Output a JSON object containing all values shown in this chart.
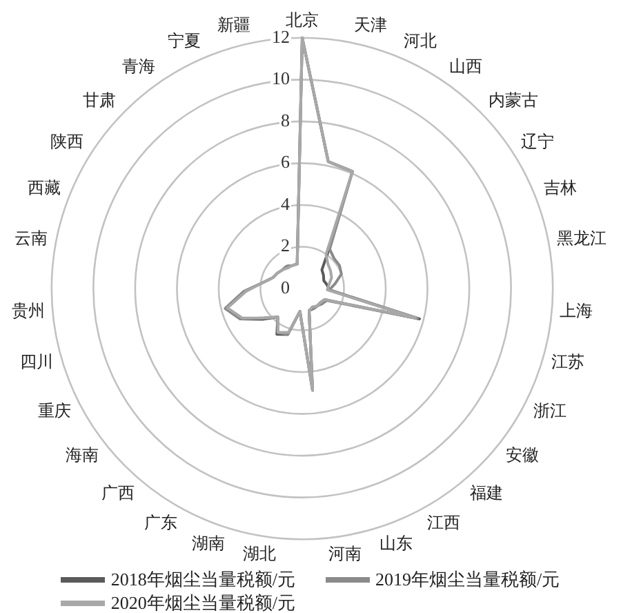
{
  "chart_data": {
    "type": "radar",
    "categories": [
      "北京",
      "天津",
      "河北",
      "山西",
      "内蒙古",
      "辽宁",
      "吉林",
      "黑龙江",
      "上海",
      "江苏",
      "浙江",
      "安徽",
      "福建",
      "江西",
      "山东",
      "河南",
      "湖北",
      "湖南",
      "广东",
      "广西",
      "海南",
      "重庆",
      "四川",
      "贵州",
      "云南",
      "西藏",
      "陕西",
      "甘肃",
      "青海",
      "宁夏",
      "新疆"
    ],
    "series": [
      {
        "name": "2018年烟尘当量税额/元",
        "color": "#5a5a5a",
        "values": [
          12,
          6.2,
          6.1,
          2.2,
          1.3,
          1.2,
          1.1,
          1.2,
          1.3,
          5.8,
          1.2,
          1.1,
          1.1,
          1.1,
          1.1,
          4.9,
          1.1,
          2.3,
          2.5,
          1.8,
          2.4,
          3.3,
          3.8,
          2.8,
          1.9,
          1.5,
          1.4,
          1.3,
          1.3,
          1.2,
          1.2
        ]
      },
      {
        "name": "2019年烟尘当量税额/元",
        "color": "#8a8a8a",
        "values": [
          12,
          6.2,
          6.1,
          2.3,
          2.1,
          2.1,
          2.0,
          1.6,
          1.3,
          5.7,
          1.3,
          1.2,
          1.1,
          1.1,
          1.1,
          4.8,
          1.1,
          2.3,
          2.4,
          1.8,
          2.3,
          3.3,
          3.8,
          2.8,
          1.9,
          1.5,
          1.4,
          1.3,
          1.3,
          1.2,
          1.2
        ]
      },
      {
        "name": "2020年烟尘当量税额/元",
        "color": "#a8a8a8",
        "values": [
          12,
          6.2,
          6.1,
          2.0,
          1.7,
          1.6,
          1.5,
          1.3,
          1.2,
          5.6,
          1.2,
          1.1,
          1.1,
          1.0,
          1.1,
          4.9,
          1.1,
          2.2,
          2.4,
          1.8,
          2.3,
          3.2,
          3.7,
          2.7,
          1.9,
          1.5,
          1.4,
          1.3,
          1.2,
          1.2,
          1.2
        ]
      }
    ],
    "ylim": [
      0,
      12
    ],
    "yticks": [
      0,
      2,
      4,
      6,
      8,
      10,
      12
    ],
    "grid": true,
    "legend": "bottom"
  }
}
